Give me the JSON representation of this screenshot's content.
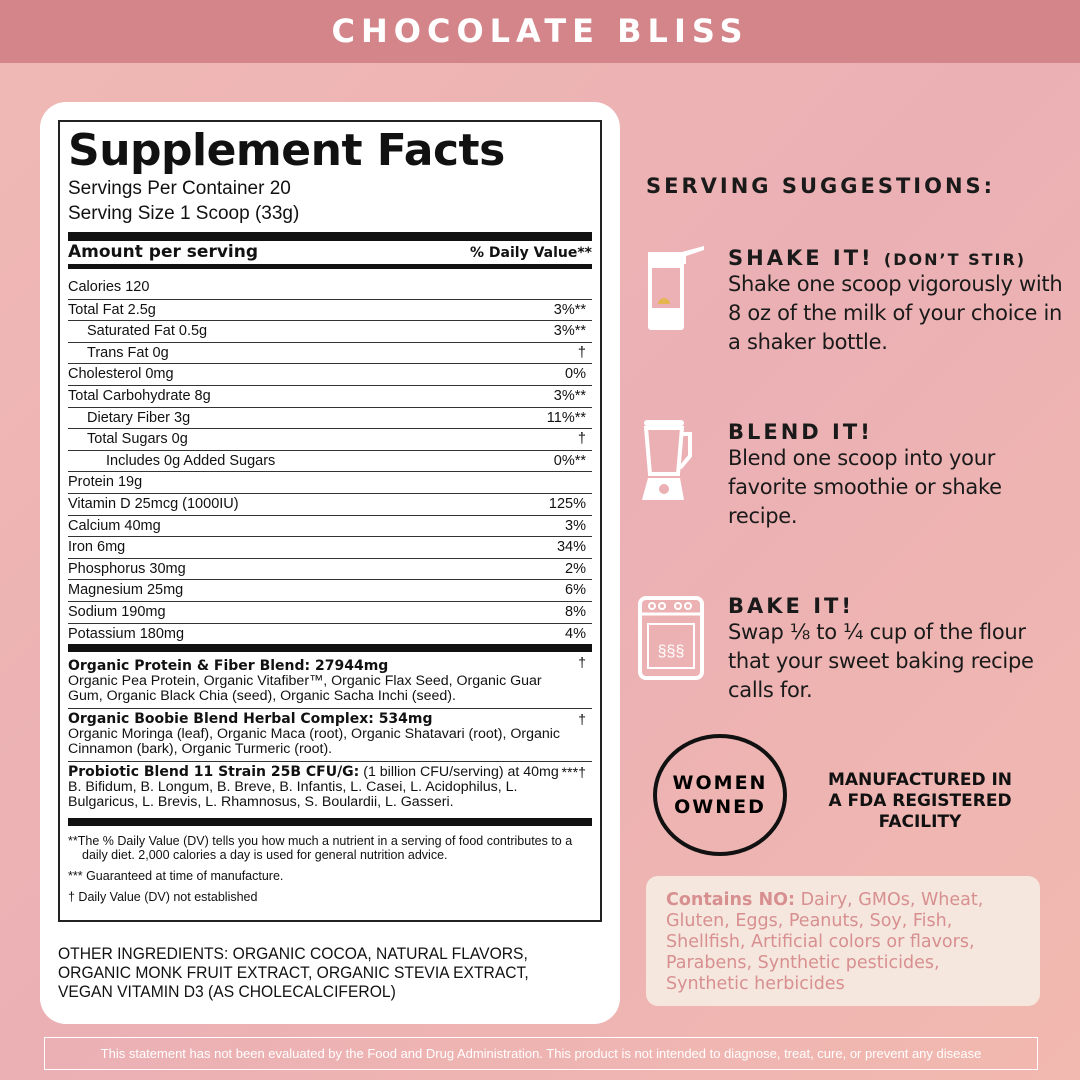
{
  "header": {
    "title": "CHOCOLATE BLISS"
  },
  "facts": {
    "title": "Supplement Facts",
    "servings": "Servings Per Container 20",
    "serving_size": "Serving Size 1 Scoop (33g)",
    "amount_label": "Amount per serving",
    "dv_label": "% Daily Value**",
    "rows": [
      {
        "name": "Calories 120",
        "dv": "",
        "indent": 0
      },
      {
        "name": "Total Fat 2.5g",
        "dv": "3%**",
        "indent": 0
      },
      {
        "name": "Saturated Fat 0.5g",
        "dv": "3%**",
        "indent": 1
      },
      {
        "name": "Trans Fat 0g",
        "dv": "†",
        "indent": 1
      },
      {
        "name": "Cholesterol 0mg",
        "dv": "0%",
        "indent": 0
      },
      {
        "name": "Total Carbohydrate 8g",
        "dv": "3%**",
        "indent": 0
      },
      {
        "name": "Dietary Fiber 3g",
        "dv": "11%**",
        "indent": 1
      },
      {
        "name": "Total Sugars 0g",
        "dv": "†",
        "indent": 1
      },
      {
        "name": "Includes 0g Added Sugars",
        "dv": "0%**",
        "indent": 2
      },
      {
        "name": "Protein 19g",
        "dv": "",
        "indent": 0
      },
      {
        "name": "Vitamin D 25mcg (1000IU)",
        "dv": "125%",
        "indent": 0
      },
      {
        "name": "Calcium 40mg",
        "dv": "3%",
        "indent": 0
      },
      {
        "name": "Iron 6mg",
        "dv": "34%",
        "indent": 0
      },
      {
        "name": "Phosphorus 30mg",
        "dv": "2%",
        "indent": 0
      },
      {
        "name": "Magnesium 25mg",
        "dv": "6%",
        "indent": 0
      },
      {
        "name": "Sodium 190mg",
        "dv": "8%",
        "indent": 0
      },
      {
        "name": "Potassium 180mg",
        "dv": "4%",
        "indent": 0
      }
    ],
    "blends": [
      {
        "title": "Organic Protein & Fiber Blend: 27944mg",
        "extra": "",
        "mark": "†",
        "text": "Organic Pea Protein, Organic Vitafiber™, Organic Flax Seed, Organic Guar Gum, Organic Black Chia (seed), Organic Sacha Inchi (seed)."
      },
      {
        "title": "Organic Boobie Blend Herbal Complex: 534mg",
        "extra": "",
        "mark": "†",
        "text": "Organic Moringa (leaf), Organic Maca (root), Organic Shatavari (root), Organic Cinnamon (bark), Organic Turmeric (root)."
      },
      {
        "title": "Probiotic Blend 11 Strain 25B CFU/G:",
        "extra": " (1 billion CFU/serving) at 40mg",
        "mark": "***†",
        "text": "B. Bifidum, B. Longum, B. Breve, B. Infantis, L. Casei, L. Acidophilus, L. Bulgaricus, L. Brevis, L. Rhamnosus, S. Boulardii, L. Gasseri."
      }
    ],
    "footnotes": [
      "**The % Daily Value (DV) tells you how much a nutrient in a serving of food contributes to a daily diet. 2,000 calories a day is used for general nutrition advice.",
      "*** Guaranteed at time of manufacture.",
      "† Daily Value (DV) not established"
    ],
    "other_ingredients": "OTHER INGREDIENTS: ORGANIC COCOA, NATURAL FLAVORS, ORGANIC MONK FRUIT EXTRACT, ORGANIC STEVIA EXTRACT, VEGAN VITAMIN D3 (AS CHOLECALCIFEROL)"
  },
  "suggestions": {
    "title": "SERVING SUGGESTIONS:",
    "items": [
      {
        "icon": "shaker-bottle-icon",
        "title": "SHAKE IT!",
        "note": "(DON’T STIR)",
        "text": "Shake one scoop vigorously with 8 oz of the milk of your choice in a shaker bottle."
      },
      {
        "icon": "blender-icon",
        "title": "BLEND IT!",
        "note": "",
        "text": "Blend one scoop into your favorite smoothie or shake recipe."
      },
      {
        "icon": "oven-icon",
        "title": "BAKE IT!",
        "note": "",
        "text": "Swap ⅛ to ¼ cup of the flour that your sweet baking recipe calls for."
      }
    ]
  },
  "badges": {
    "women_owned_1": "WOMEN",
    "women_owned_2": "OWNED",
    "fda": "MANUFACTURED IN A FDA REGISTERED FACILITY"
  },
  "contains": {
    "label": "Contains NO:",
    "text": " Dairy, GMOs, Wheat, Gluten, Eggs, Peanuts, Soy, Fish, Shellfish, Artificial colors or flavors, Parabens, Synthetic pesticides, Synthetic herbicides"
  },
  "disclaimer": "This statement has not been evaluated by the Food and Drug Administration. This product is not intended to diagnose, treat, cure, or prevent any disease",
  "colors": {
    "header": "#d4858a",
    "background": "#ebb0b4",
    "contains_text": "#d88f90",
    "contains_bg": "#f5e7de"
  }
}
